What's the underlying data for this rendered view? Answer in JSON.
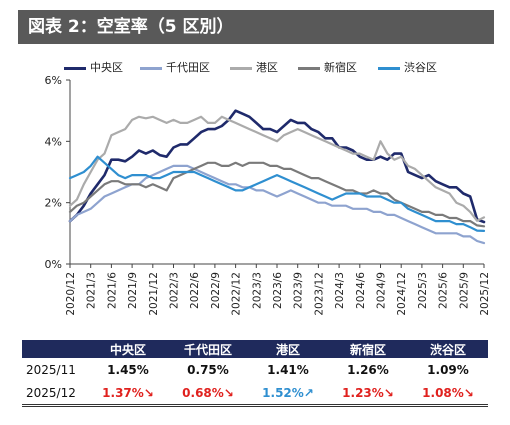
{
  "header": {
    "title": "図表 2：空室率（5 区別）"
  },
  "chart_data": {
    "type": "line",
    "x": [
      "2020/12",
      "2021/1",
      "2021/2",
      "2021/3",
      "2021/4",
      "2021/5",
      "2021/6",
      "2021/7",
      "2021/8",
      "2021/9",
      "2021/10",
      "2021/11",
      "2021/12",
      "2022/1",
      "2022/2",
      "2022/3",
      "2022/4",
      "2022/5",
      "2022/6",
      "2022/7",
      "2022/8",
      "2022/9",
      "2022/10",
      "2022/11",
      "2022/12",
      "2023/1",
      "2023/2",
      "2023/3",
      "2023/4",
      "2023/5",
      "2023/6",
      "2023/7",
      "2023/8",
      "2023/9",
      "2023/10",
      "2023/11",
      "2023/12",
      "2024/1",
      "2024/2",
      "2024/3",
      "2024/4",
      "2024/5",
      "2024/6",
      "2024/7",
      "2024/8",
      "2024/9",
      "2024/10",
      "2024/11",
      "2024/12",
      "2025/1",
      "2025/2",
      "2025/3",
      "2025/4",
      "2025/5",
      "2025/6",
      "2025/7",
      "2025/8",
      "2025/9",
      "2025/10",
      "2025/11",
      "2025/12"
    ],
    "xtick_labels": [
      "2020/12",
      "2021/3",
      "2021/6",
      "2021/9",
      "2021/12",
      "2022/3",
      "2022/6",
      "2022/9",
      "2022/12",
      "2023/3",
      "2023/6",
      "2023/9",
      "2023/12",
      "2024/3",
      "2024/6",
      "2024/9",
      "2024/12",
      "2025/3",
      "2025/6",
      "2025/9",
      "2025/12"
    ],
    "yticks": [
      "0%",
      "2%",
      "4%",
      "6%"
    ],
    "ylim": [
      0,
      6
    ],
    "grid": false,
    "legend_position": "top",
    "series": [
      {
        "name": "中央区",
        "color": "#1f2a6b",
        "width": 2.6,
        "values": [
          1.4,
          1.6,
          1.9,
          2.3,
          2.6,
          2.9,
          3.4,
          3.4,
          3.35,
          3.5,
          3.7,
          3.6,
          3.7,
          3.55,
          3.5,
          3.8,
          3.9,
          3.9,
          4.1,
          4.3,
          4.4,
          4.4,
          4.5,
          4.7,
          5.0,
          4.9,
          4.8,
          4.6,
          4.4,
          4.4,
          4.3,
          4.5,
          4.7,
          4.6,
          4.6,
          4.4,
          4.3,
          4.1,
          4.1,
          3.8,
          3.8,
          3.7,
          3.5,
          3.4,
          3.4,
          3.5,
          3.4,
          3.6,
          3.6,
          3.0,
          2.9,
          2.8,
          2.9,
          2.7,
          2.6,
          2.5,
          2.5,
          2.3,
          2.2,
          1.45,
          1.37
        ]
      },
      {
        "name": "千代田区",
        "color": "#8ea3cf",
        "width": 2.2,
        "values": [
          1.4,
          1.6,
          1.7,
          1.8,
          2.0,
          2.2,
          2.3,
          2.4,
          2.5,
          2.6,
          2.6,
          2.8,
          2.9,
          3.0,
          3.1,
          3.2,
          3.2,
          3.2,
          3.1,
          3.0,
          2.9,
          2.8,
          2.7,
          2.6,
          2.6,
          2.5,
          2.5,
          2.4,
          2.4,
          2.3,
          2.2,
          2.3,
          2.4,
          2.3,
          2.2,
          2.1,
          2.0,
          2.0,
          1.9,
          1.9,
          1.9,
          1.8,
          1.8,
          1.8,
          1.7,
          1.7,
          1.6,
          1.6,
          1.5,
          1.4,
          1.3,
          1.2,
          1.1,
          1.0,
          1.0,
          1.0,
          1.0,
          0.9,
          0.9,
          0.75,
          0.68
        ]
      },
      {
        "name": "港区",
        "color": "#ababab",
        "width": 2.2,
        "values": [
          1.9,
          2.1,
          2.6,
          3.0,
          3.4,
          3.6,
          4.2,
          4.3,
          4.4,
          4.7,
          4.8,
          4.75,
          4.8,
          4.7,
          4.6,
          4.7,
          4.6,
          4.6,
          4.7,
          4.8,
          4.6,
          4.6,
          4.8,
          4.7,
          4.6,
          4.5,
          4.4,
          4.3,
          4.2,
          4.1,
          4.0,
          4.2,
          4.3,
          4.4,
          4.3,
          4.2,
          4.1,
          4.0,
          3.9,
          3.8,
          3.7,
          3.6,
          3.6,
          3.5,
          3.4,
          4.0,
          3.6,
          3.4,
          3.5,
          3.2,
          3.1,
          2.9,
          2.7,
          2.5,
          2.4,
          2.3,
          2.0,
          1.9,
          1.7,
          1.41,
          1.52
        ]
      },
      {
        "name": "新宿区",
        "color": "#7a7a7a",
        "width": 2.2,
        "values": [
          1.7,
          1.9,
          2.0,
          2.2,
          2.4,
          2.6,
          2.7,
          2.7,
          2.6,
          2.6,
          2.6,
          2.5,
          2.6,
          2.5,
          2.4,
          2.8,
          2.9,
          3.0,
          3.1,
          3.2,
          3.3,
          3.3,
          3.2,
          3.2,
          3.3,
          3.2,
          3.3,
          3.3,
          3.3,
          3.2,
          3.2,
          3.1,
          3.1,
          3.0,
          2.9,
          2.8,
          2.8,
          2.7,
          2.6,
          2.5,
          2.4,
          2.4,
          2.3,
          2.3,
          2.4,
          2.3,
          2.3,
          2.1,
          2.0,
          1.9,
          1.8,
          1.7,
          1.7,
          1.6,
          1.6,
          1.5,
          1.5,
          1.4,
          1.4,
          1.26,
          1.23
        ]
      },
      {
        "name": "渋谷区",
        "color": "#2f8fd0",
        "width": 2.2,
        "values": [
          2.8,
          2.9,
          3.0,
          3.2,
          3.5,
          3.3,
          3.1,
          2.9,
          2.8,
          2.9,
          2.9,
          2.9,
          2.8,
          2.8,
          2.9,
          3.0,
          3.0,
          3.0,
          3.0,
          2.9,
          2.8,
          2.7,
          2.6,
          2.5,
          2.4,
          2.4,
          2.5,
          2.6,
          2.7,
          2.8,
          2.9,
          2.8,
          2.7,
          2.6,
          2.5,
          2.4,
          2.3,
          2.2,
          2.1,
          2.2,
          2.3,
          2.3,
          2.3,
          2.2,
          2.2,
          2.2,
          2.1,
          2.0,
          2.0,
          1.8,
          1.7,
          1.6,
          1.5,
          1.4,
          1.4,
          1.4,
          1.3,
          1.3,
          1.2,
          1.09,
          1.08
        ]
      }
    ]
  },
  "table": {
    "headers": [
      "",
      "中央区",
      "千代田区",
      "港区",
      "新宿区",
      "渋谷区"
    ],
    "rows": [
      {
        "period": "2025/11",
        "values": [
          "1.45%",
          "0.75%",
          "1.41%",
          "1.26%",
          "1.09%"
        ]
      },
      {
        "period": "2025/12",
        "values": [
          "1.37%↘",
          "0.68%↘",
          "1.52%↗",
          "1.23%↘",
          "1.08%↘"
        ]
      }
    ],
    "color_down": "#e0211e",
    "color_up": "#2f8fd0"
  }
}
